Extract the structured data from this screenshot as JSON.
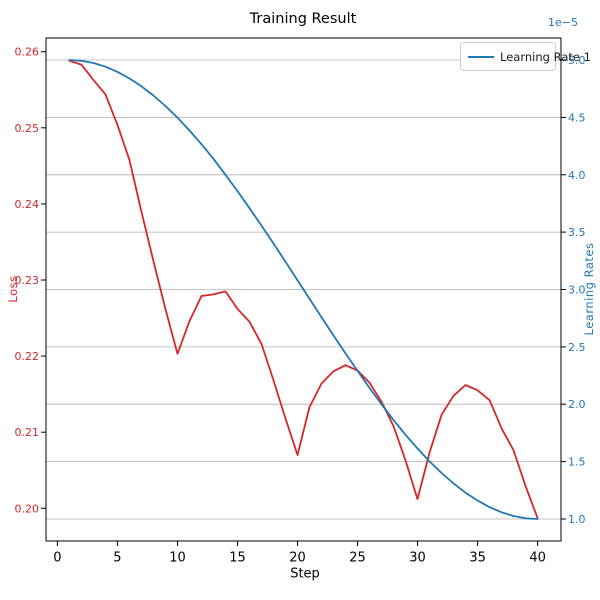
{
  "title": "Training Result",
  "axes": {
    "x": {
      "label": "Step",
      "ticks": [
        0,
        5,
        10,
        15,
        20,
        25,
        30,
        35,
        40
      ]
    },
    "left": {
      "label": "Loss",
      "color": "#d62728",
      "tick_labels": [
        "0.26",
        "0.25",
        "0.24",
        "0.23",
        "0.22",
        "0.21",
        "0.20"
      ],
      "tick_values": [
        0.26,
        0.25,
        0.24,
        0.23,
        0.22,
        0.21,
        0.2
      ]
    },
    "right": {
      "label": "Learning Rates",
      "color": "#1f77b4",
      "offset_text": "1e−5",
      "tick_labels": [
        "5.0",
        "4.5",
        "4.0",
        "3.5",
        "3.0",
        "2.5",
        "2.0",
        "1.5",
        "1.0"
      ],
      "tick_values": [
        5.0,
        4.5,
        4.0,
        3.5,
        3.0,
        2.5,
        2.0,
        1.5,
        1.0
      ]
    }
  },
  "legend": {
    "position": "upper right",
    "entries": [
      {
        "label": "Learning Rate 1",
        "color": "#1f77b4"
      }
    ]
  },
  "style": {
    "grid_color": "#b0b0b0",
    "spine_color": "#000000",
    "tick_color": "#000000",
    "background": "#ffffff"
  },
  "chart_data": {
    "type": "line",
    "title": "Training Result",
    "xlabel": "Step",
    "ylabel_left": "Loss",
    "ylabel_right": "Learning Rates",
    "right_axis_unit": "1e-5",
    "grid": "horizontal gridlines at right-axis ticks",
    "legend_position": "upper right",
    "xlim": [
      -0.95,
      41.95
    ],
    "ylim_left": [
      0.1957,
      0.2618
    ],
    "ylim_right": [
      0.808,
      5.192
    ],
    "x": [
      1,
      2,
      3,
      4,
      5,
      6,
      7,
      8,
      9,
      10,
      11,
      12,
      13,
      14,
      15,
      16,
      17,
      18,
      19,
      20,
      21,
      22,
      23,
      24,
      25,
      26,
      27,
      28,
      29,
      30,
      31,
      32,
      33,
      34,
      35,
      36,
      37,
      38,
      39,
      40
    ],
    "series": [
      {
        "name": "Loss",
        "axis": "left",
        "color": "#d62728",
        "values": [
          0.2588,
          0.2583,
          0.2563,
          0.2544,
          0.2504,
          0.2458,
          0.239,
          0.2325,
          0.2262,
          0.2203,
          0.2246,
          0.2279,
          0.2281,
          0.2285,
          0.2262,
          0.2245,
          0.2216,
          0.2168,
          0.2118,
          0.207,
          0.2133,
          0.2164,
          0.218,
          0.2188,
          0.2181,
          0.2165,
          0.214,
          0.2108,
          0.2063,
          0.2012,
          0.2073,
          0.2123,
          0.2148,
          0.2162,
          0.2155,
          0.2142,
          0.2105,
          0.2076,
          0.2029,
          0.1987
        ]
      },
      {
        "name": "Learning Rate 1",
        "axis": "right",
        "color": "#1f77b4",
        "scale": "1e-5",
        "values": [
          5.0,
          4.993,
          4.974,
          4.942,
          4.897,
          4.84,
          4.771,
          4.691,
          4.599,
          4.498,
          4.386,
          4.266,
          4.138,
          4.0,
          3.858,
          3.709,
          3.557,
          3.401,
          3.241,
          3.081,
          2.919,
          2.759,
          2.599,
          2.443,
          2.291,
          2.142,
          2.0,
          1.862,
          1.734,
          1.614,
          1.502,
          1.401,
          1.309,
          1.229,
          1.16,
          1.103,
          1.058,
          1.026,
          1.006,
          1.0
        ]
      }
    ]
  }
}
